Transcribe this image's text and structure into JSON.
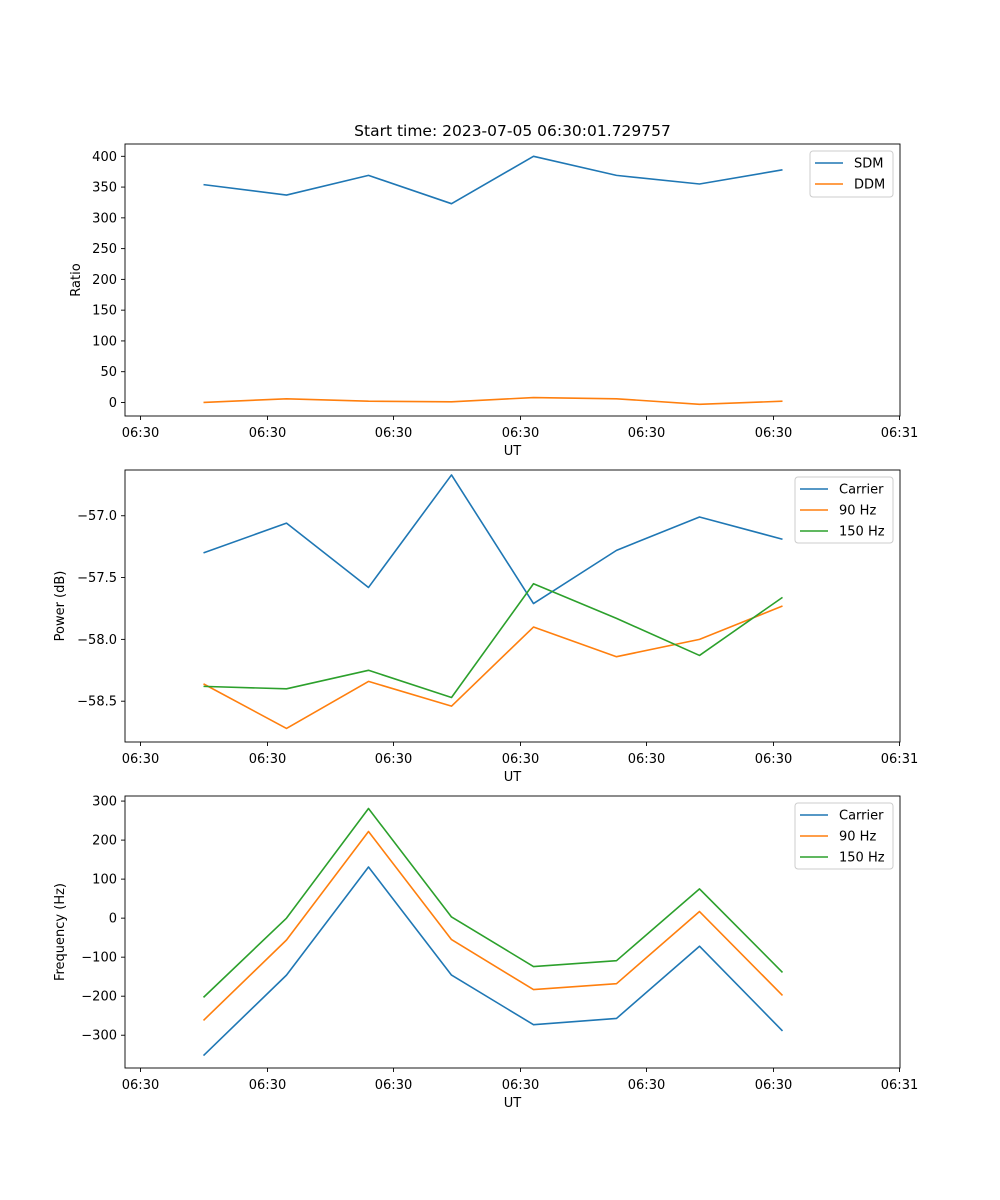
{
  "chart_data": [
    {
      "type": "line",
      "title": "Start time: 2023-07-05 06:30:01.729757",
      "xlabel": "UT",
      "ylabel": "Ratio",
      "ylim": [
        -22,
        420
      ],
      "yticks": [
        "0",
        "50",
        "100",
        "150",
        "200",
        "250",
        "300",
        "350",
        "400"
      ],
      "ytick_values": [
        0,
        50,
        100,
        150,
        200,
        250,
        300,
        350,
        400
      ],
      "xticks": [
        "06:30",
        "06:30",
        "06:30",
        "06:30",
        "06:30",
        "06:30",
        "06:30",
        "06:31"
      ],
      "legend_position": "upper-right",
      "series": [
        {
          "name": "SDM",
          "color": "#1f77b4",
          "values": [
            354,
            337,
            369,
            323,
            400,
            369,
            355,
            378
          ]
        },
        {
          "name": "DDM",
          "color": "#ff7f0e",
          "values": [
            0,
            6,
            2,
            1,
            8,
            6,
            -3,
            2
          ]
        }
      ]
    },
    {
      "type": "line",
      "title": "",
      "xlabel": "UT",
      "ylabel": "Power (dB)",
      "ylim": [
        -58.83,
        -56.63
      ],
      "yticks": [
        "−57.0",
        "−57.5",
        "−58.0",
        "−58.5"
      ],
      "ytick_values": [
        -57.0,
        -57.5,
        -58.0,
        -58.5
      ],
      "xticks": [
        "06:30",
        "06:30",
        "06:30",
        "06:30",
        "06:30",
        "06:30",
        "06:30",
        "06:31"
      ],
      "legend_position": "upper-right",
      "series": [
        {
          "name": "Carrier",
          "color": "#1f77b4",
          "values": [
            -57.3,
            -57.06,
            -57.58,
            -56.67,
            -57.71,
            -57.28,
            -57.01,
            -57.19
          ]
        },
        {
          "name": "90 Hz",
          "color": "#ff7f0e",
          "values": [
            -58.36,
            -58.72,
            -58.34,
            -58.54,
            -57.9,
            -58.14,
            -58.0,
            -57.73
          ]
        },
        {
          "name": "150 Hz",
          "color": "#2ca02c",
          "values": [
            -58.38,
            -58.4,
            -58.25,
            -58.47,
            -57.55,
            -57.83,
            -58.13,
            -57.66
          ]
        }
      ]
    },
    {
      "type": "line",
      "title": "",
      "xlabel": "UT",
      "ylabel": "Frequency (Hz)",
      "ylim": [
        -384,
        313
      ],
      "yticks": [
        "300",
        "200",
        "100",
        "0",
        "−100",
        "−200",
        "−300"
      ],
      "ytick_values": [
        300,
        200,
        100,
        0,
        -100,
        -200,
        -300
      ],
      "xticks": [
        "06:30",
        "06:30",
        "06:30",
        "06:30",
        "06:30",
        "06:30",
        "06:30",
        "06:31"
      ],
      "legend_position": "upper-right",
      "series": [
        {
          "name": "Carrier",
          "color": "#1f77b4",
          "values": [
            -352,
            -146,
            131,
            -146,
            -273,
            -257,
            -72,
            -289
          ]
        },
        {
          "name": "90 Hz",
          "color": "#ff7f0e",
          "values": [
            -262,
            -56,
            222,
            -55,
            -183,
            -168,
            17,
            -198
          ]
        },
        {
          "name": "150 Hz",
          "color": "#2ca02c",
          "values": [
            -203,
            0,
            281,
            3,
            -124,
            -109,
            75,
            -139
          ]
        }
      ]
    }
  ]
}
